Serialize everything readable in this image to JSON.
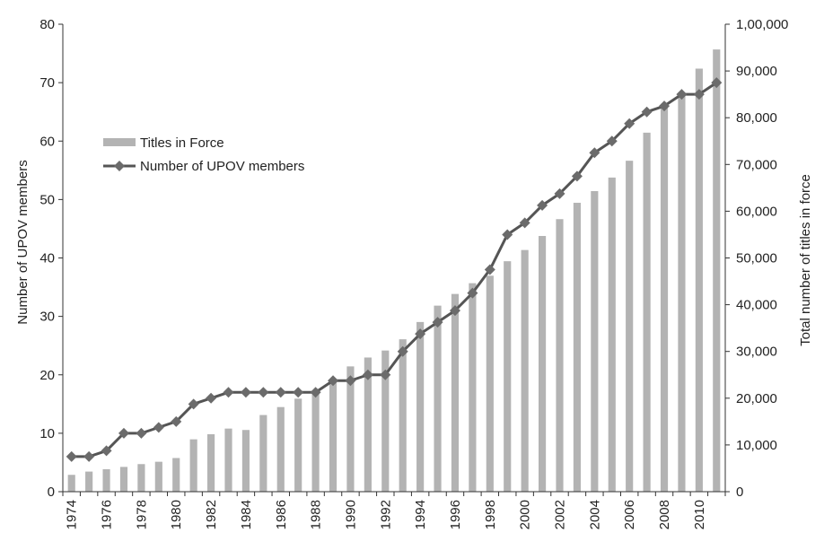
{
  "chart_data": {
    "type": "bar",
    "title": "",
    "ylabel_left": "Number of UPOV members",
    "ylabel_right": "Total number of titles in force",
    "ylim_left": [
      0,
      80
    ],
    "ylim_right": [
      0,
      100000
    ],
    "yticks_left": [
      "0",
      "10",
      "20",
      "30",
      "40",
      "50",
      "60",
      "70",
      "80"
    ],
    "yticks_right": [
      "0",
      "10,000",
      "20,000",
      "30,000",
      "40,000",
      "50,000",
      "60,000",
      "70,000",
      "80,000",
      "90,000",
      "1,00,000"
    ],
    "categories": [
      1974,
      1975,
      1976,
      1977,
      1978,
      1979,
      1980,
      1981,
      1982,
      1983,
      1984,
      1985,
      1986,
      1987,
      1988,
      1989,
      1990,
      1991,
      1992,
      1993,
      1994,
      1995,
      1996,
      1997,
      1998,
      1999,
      2000,
      2001,
      2002,
      2003,
      2004,
      2005,
      2006,
      2007,
      2008,
      2009,
      2010,
      2011
    ],
    "xtick_labels": [
      "1974",
      "1976",
      "1978",
      "1980",
      "1982",
      "1984",
      "1986",
      "1988",
      "1990",
      "1992",
      "1994",
      "1996",
      "1998",
      "2000",
      "2002",
      "2004",
      "2006",
      "2008",
      "2010"
    ],
    "grid": false,
    "legend_position": "upper-left",
    "series": [
      {
        "name": "Titles in Force",
        "kind": "bar",
        "axis": "right",
        "color": "#b3b3b3",
        "values": [
          3600,
          4300,
          4800,
          5300,
          5900,
          6400,
          7200,
          11200,
          12300,
          13500,
          13200,
          16400,
          18100,
          19900,
          21400,
          24100,
          26800,
          28700,
          30200,
          32600,
          36300,
          39800,
          42300,
          44600,
          46200,
          49300,
          51700,
          54700,
          58300,
          61800,
          64300,
          67200,
          70800,
          76800,
          82200,
          85300,
          90500,
          94600
        ]
      },
      {
        "name": "Number of UPOV members",
        "kind": "line",
        "axis": "left",
        "color": "#555555",
        "marker": "diamond",
        "values": [
          6,
          6,
          7,
          10,
          10,
          11,
          12,
          15,
          16,
          17,
          17,
          17,
          17,
          17,
          17,
          19,
          19,
          20,
          20,
          24,
          27,
          29,
          31,
          34,
          38,
          44,
          46,
          49,
          51,
          54,
          58,
          60,
          63,
          65,
          66,
          68,
          68,
          70
        ]
      }
    ]
  }
}
